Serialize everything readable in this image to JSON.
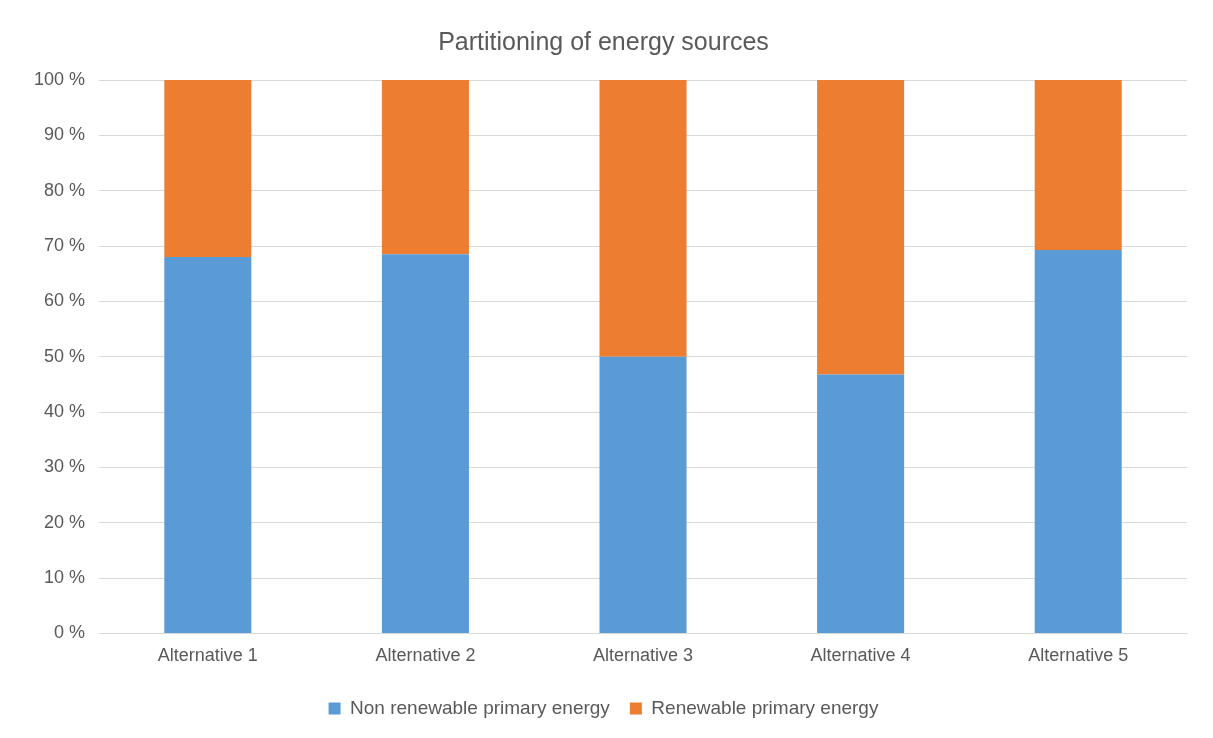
{
  "chart_data": {
    "type": "bar",
    "title": "Partitioning of energy sources",
    "categories": [
      "Alternative 1",
      "Alternative 2",
      "Alternative 3",
      "Alternative 4",
      "Alternative 5"
    ],
    "stacked": true,
    "series": [
      {
        "name": "Non renewable primary energy",
        "color": "#5b9bd5",
        "values": [
          68,
          68.5,
          50,
          46.8,
          69.3
        ]
      },
      {
        "name": "Renewable primary energy",
        "color": "#ed7d31",
        "values": [
          32,
          31.5,
          50,
          53.2,
          30.7
        ]
      }
    ],
    "ylim": [
      0,
      100
    ],
    "yticks": [
      {
        "value": 0,
        "label": "0 %"
      },
      {
        "value": 10,
        "label": "10 %"
      },
      {
        "value": 20,
        "label": "20 %"
      },
      {
        "value": 30,
        "label": "30 %"
      },
      {
        "value": 40,
        "label": "40 %"
      },
      {
        "value": 50,
        "label": "50 %"
      },
      {
        "value": 60,
        "label": "60 %"
      },
      {
        "value": 70,
        "label": "70 %"
      },
      {
        "value": 80,
        "label": "80 %"
      },
      {
        "value": 90,
        "label": "90 %"
      },
      {
        "value": 100,
        "label": "100 %"
      }
    ],
    "grid": "y",
    "legend": "bottom"
  }
}
